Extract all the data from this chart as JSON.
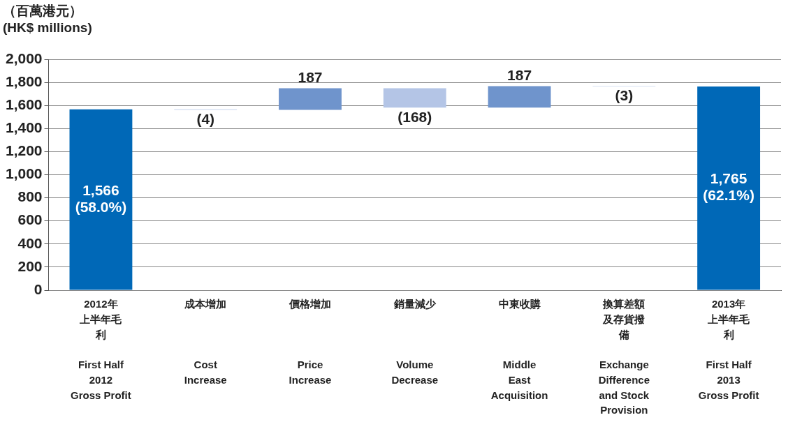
{
  "chart_data": {
    "type": "bar",
    "ylabel": "（百萬港元）\n(HK$ millions)",
    "categories": [
      "2012年上半年毛利\n\nFirst Half\n2012\nGross Profit",
      "成本增加\n\nCost\nIncrease",
      "價格增加\n\nPrice\nIncrease",
      "銷量減少\n\nVolume\nDecrease",
      "中東收購\n\nMiddle\nEast\nAcquisition",
      "換算差額及存貨撥備\n\nExchange\nDifference\nand Stock\nProvision",
      "2013年上半年毛利\n\nFirst Half\n2013\nGross Profit"
    ],
    "values": [
      1566,
      -4,
      187,
      -168,
      187,
      -3,
      1765
    ],
    "base": [
      0,
      1566,
      1562,
      1749,
      1581,
      1768,
      0
    ],
    "colors": [
      "#0068b7",
      "#b4c5e6",
      "#6f94cc",
      "#b4c5e6",
      "#6f94cc",
      "#b4c5e6",
      "#0068b7"
    ],
    "value_labels": [
      "1,566\n(58.0%)",
      "(4)",
      "187",
      "(168)",
      "187",
      "(3)",
      "1,765\n(62.1%)"
    ],
    "ylim": [
      0,
      2000
    ],
    "yticks": [
      {
        "value": 0,
        "label": "0"
      },
      {
        "value": 200,
        "label": "200"
      },
      {
        "value": 400,
        "label": "400"
      },
      {
        "value": 600,
        "label": "600"
      },
      {
        "value": 800,
        "label": "800"
      },
      {
        "value": 1000,
        "label": "1,000"
      },
      {
        "value": 1200,
        "label": "1,200"
      },
      {
        "value": 1400,
        "label": "1,400"
      },
      {
        "value": 1600,
        "label": "1,600"
      },
      {
        "value": 1800,
        "label": "1,800"
      },
      {
        "value": 2000,
        "label": "2,000"
      }
    ],
    "grid": "y",
    "legend": false
  }
}
